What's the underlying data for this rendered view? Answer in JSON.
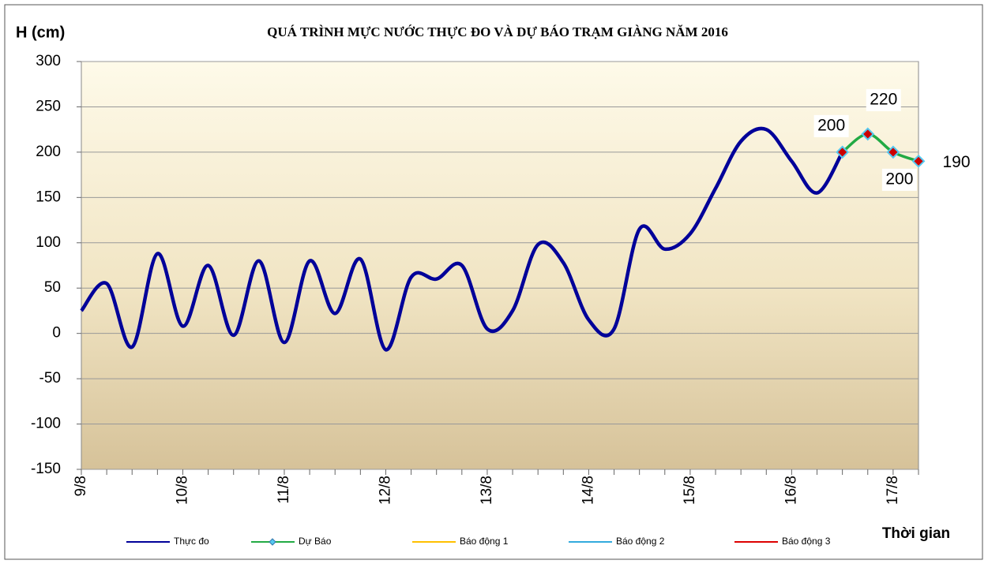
{
  "chart_data": {
    "type": "line",
    "title": "QUÁ TRÌNH MỰC NƯỚC THỰC ĐO VÀ DỰ BÁO TRẠM GIÀNG  NĂM 2016",
    "y_label": "H (cm)",
    "x_label": "Thời gian",
    "categories": [
      "9/8",
      null,
      null,
      null,
      "10/8",
      null,
      null,
      null,
      "11/8",
      null,
      null,
      null,
      "12/8",
      null,
      null,
      null,
      "13/8",
      null,
      null,
      null,
      "14/8",
      null,
      null,
      null,
      "15/8",
      null,
      null,
      null,
      "16/8",
      null,
      null,
      null,
      "17/8",
      null
    ],
    "series": [
      {
        "name": "Thực đo",
        "color": "#000099",
        "values": [
          25,
          55,
          -15,
          88,
          8,
          75,
          -2,
          80,
          -10,
          80,
          22,
          82,
          -18,
          62,
          60,
          75,
          5,
          25,
          98,
          78,
          15,
          5,
          115,
          93,
          110,
          160,
          212,
          225,
          190,
          155,
          200,
          null,
          null,
          null
        ]
      },
      {
        "name": "Dự Báo",
        "color": "#22aa44",
        "values": [
          null,
          null,
          null,
          null,
          null,
          null,
          null,
          null,
          null,
          null,
          null,
          null,
          null,
          null,
          null,
          null,
          null,
          null,
          null,
          null,
          null,
          null,
          null,
          null,
          null,
          null,
          null,
          null,
          null,
          null,
          200,
          220,
          200,
          190
        ]
      },
      {
        "name": "Báo động 1",
        "color": "#ffc000",
        "values": [
          null,
          null,
          null,
          null,
          null,
          null,
          null,
          null,
          null,
          null,
          null,
          null,
          null,
          null,
          null,
          null,
          null,
          null,
          null,
          null,
          null,
          null,
          null,
          null,
          null,
          null,
          null,
          null,
          null,
          null,
          null,
          null,
          null,
          null
        ]
      },
      {
        "name": "Báo động 2",
        "color": "#33aadd",
        "values": [
          null,
          null,
          null,
          null,
          null,
          null,
          null,
          null,
          null,
          null,
          null,
          null,
          null,
          null,
          null,
          null,
          null,
          null,
          null,
          null,
          null,
          null,
          null,
          null,
          null,
          null,
          null,
          null,
          null,
          null,
          null,
          null,
          null,
          null
        ]
      },
      {
        "name": "Báo động 3",
        "color": "#dd0000",
        "values": [
          null,
          null,
          null,
          null,
          null,
          null,
          null,
          null,
          null,
          null,
          null,
          null,
          null,
          null,
          null,
          null,
          null,
          null,
          null,
          null,
          null,
          null,
          null,
          null,
          null,
          null,
          null,
          null,
          null,
          null,
          null,
          null,
          null,
          null
        ]
      }
    ],
    "ylim": [
      -150,
      300
    ],
    "yticks": [
      -150,
      -100,
      -50,
      0,
      50,
      100,
      150,
      200,
      250,
      300
    ],
    "grid": true
  }
}
